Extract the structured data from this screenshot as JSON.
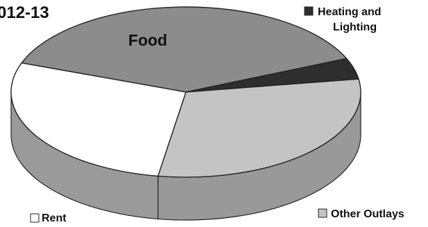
{
  "chart_data": {
    "type": "pie",
    "title": "012-13",
    "categories": [
      "Food",
      "Heating and Lighting",
      "Other Outlays",
      "Rent"
    ],
    "values": [
      38,
      4,
      30,
      28
    ],
    "unit": "%",
    "colors": {
      "Food": "#8c8c8c",
      "Heating and Lighting": "#2e2e2e",
      "Other Outlays": "#c4c4c4",
      "Rent": "#ffffff"
    },
    "legend": [
      {
        "label_lines": [
          "Heating and",
          "Lighting"
        ],
        "key": "Heating and Lighting"
      },
      {
        "label_lines": [
          "Other Outlays"
        ],
        "key": "Other Outlays"
      },
      {
        "label_lines": [
          "Rent"
        ],
        "key": "Rent"
      }
    ],
    "data_labels": {
      "Food": "Food"
    },
    "style": "3d-pie"
  }
}
